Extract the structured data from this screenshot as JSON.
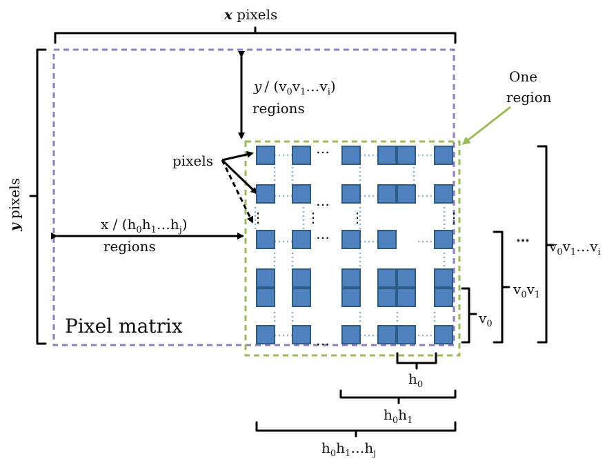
{
  "labels": {
    "x_pixels_italic": "x",
    "x_pixels_rest": "pixels",
    "y_pixels_italic": "y",
    "y_pixels_rest": "pixels",
    "y_div_italic": "y",
    "y_div_rest": "/ (v",
    "regions": "regions",
    "x_div": "x / (h",
    "pixels": "pixels",
    "one_region_1": "One",
    "one_region_2": "region",
    "pixel_matrix": "Pixel matrix",
    "ellipsis": "…",
    "vertical_ellipsis": "⋮",
    "v": "v",
    "h": "h",
    "sub_0": "0",
    "sub_1": "1",
    "sub_i": "i",
    "sub_j": "j",
    "close_paren": ")"
  },
  "colors": {
    "pixel_matrix_border": "#8e7cc3",
    "region_border": "#9bbb59",
    "cell_fill": "#4f81bd",
    "arrow_green": "#9bbb59"
  }
}
